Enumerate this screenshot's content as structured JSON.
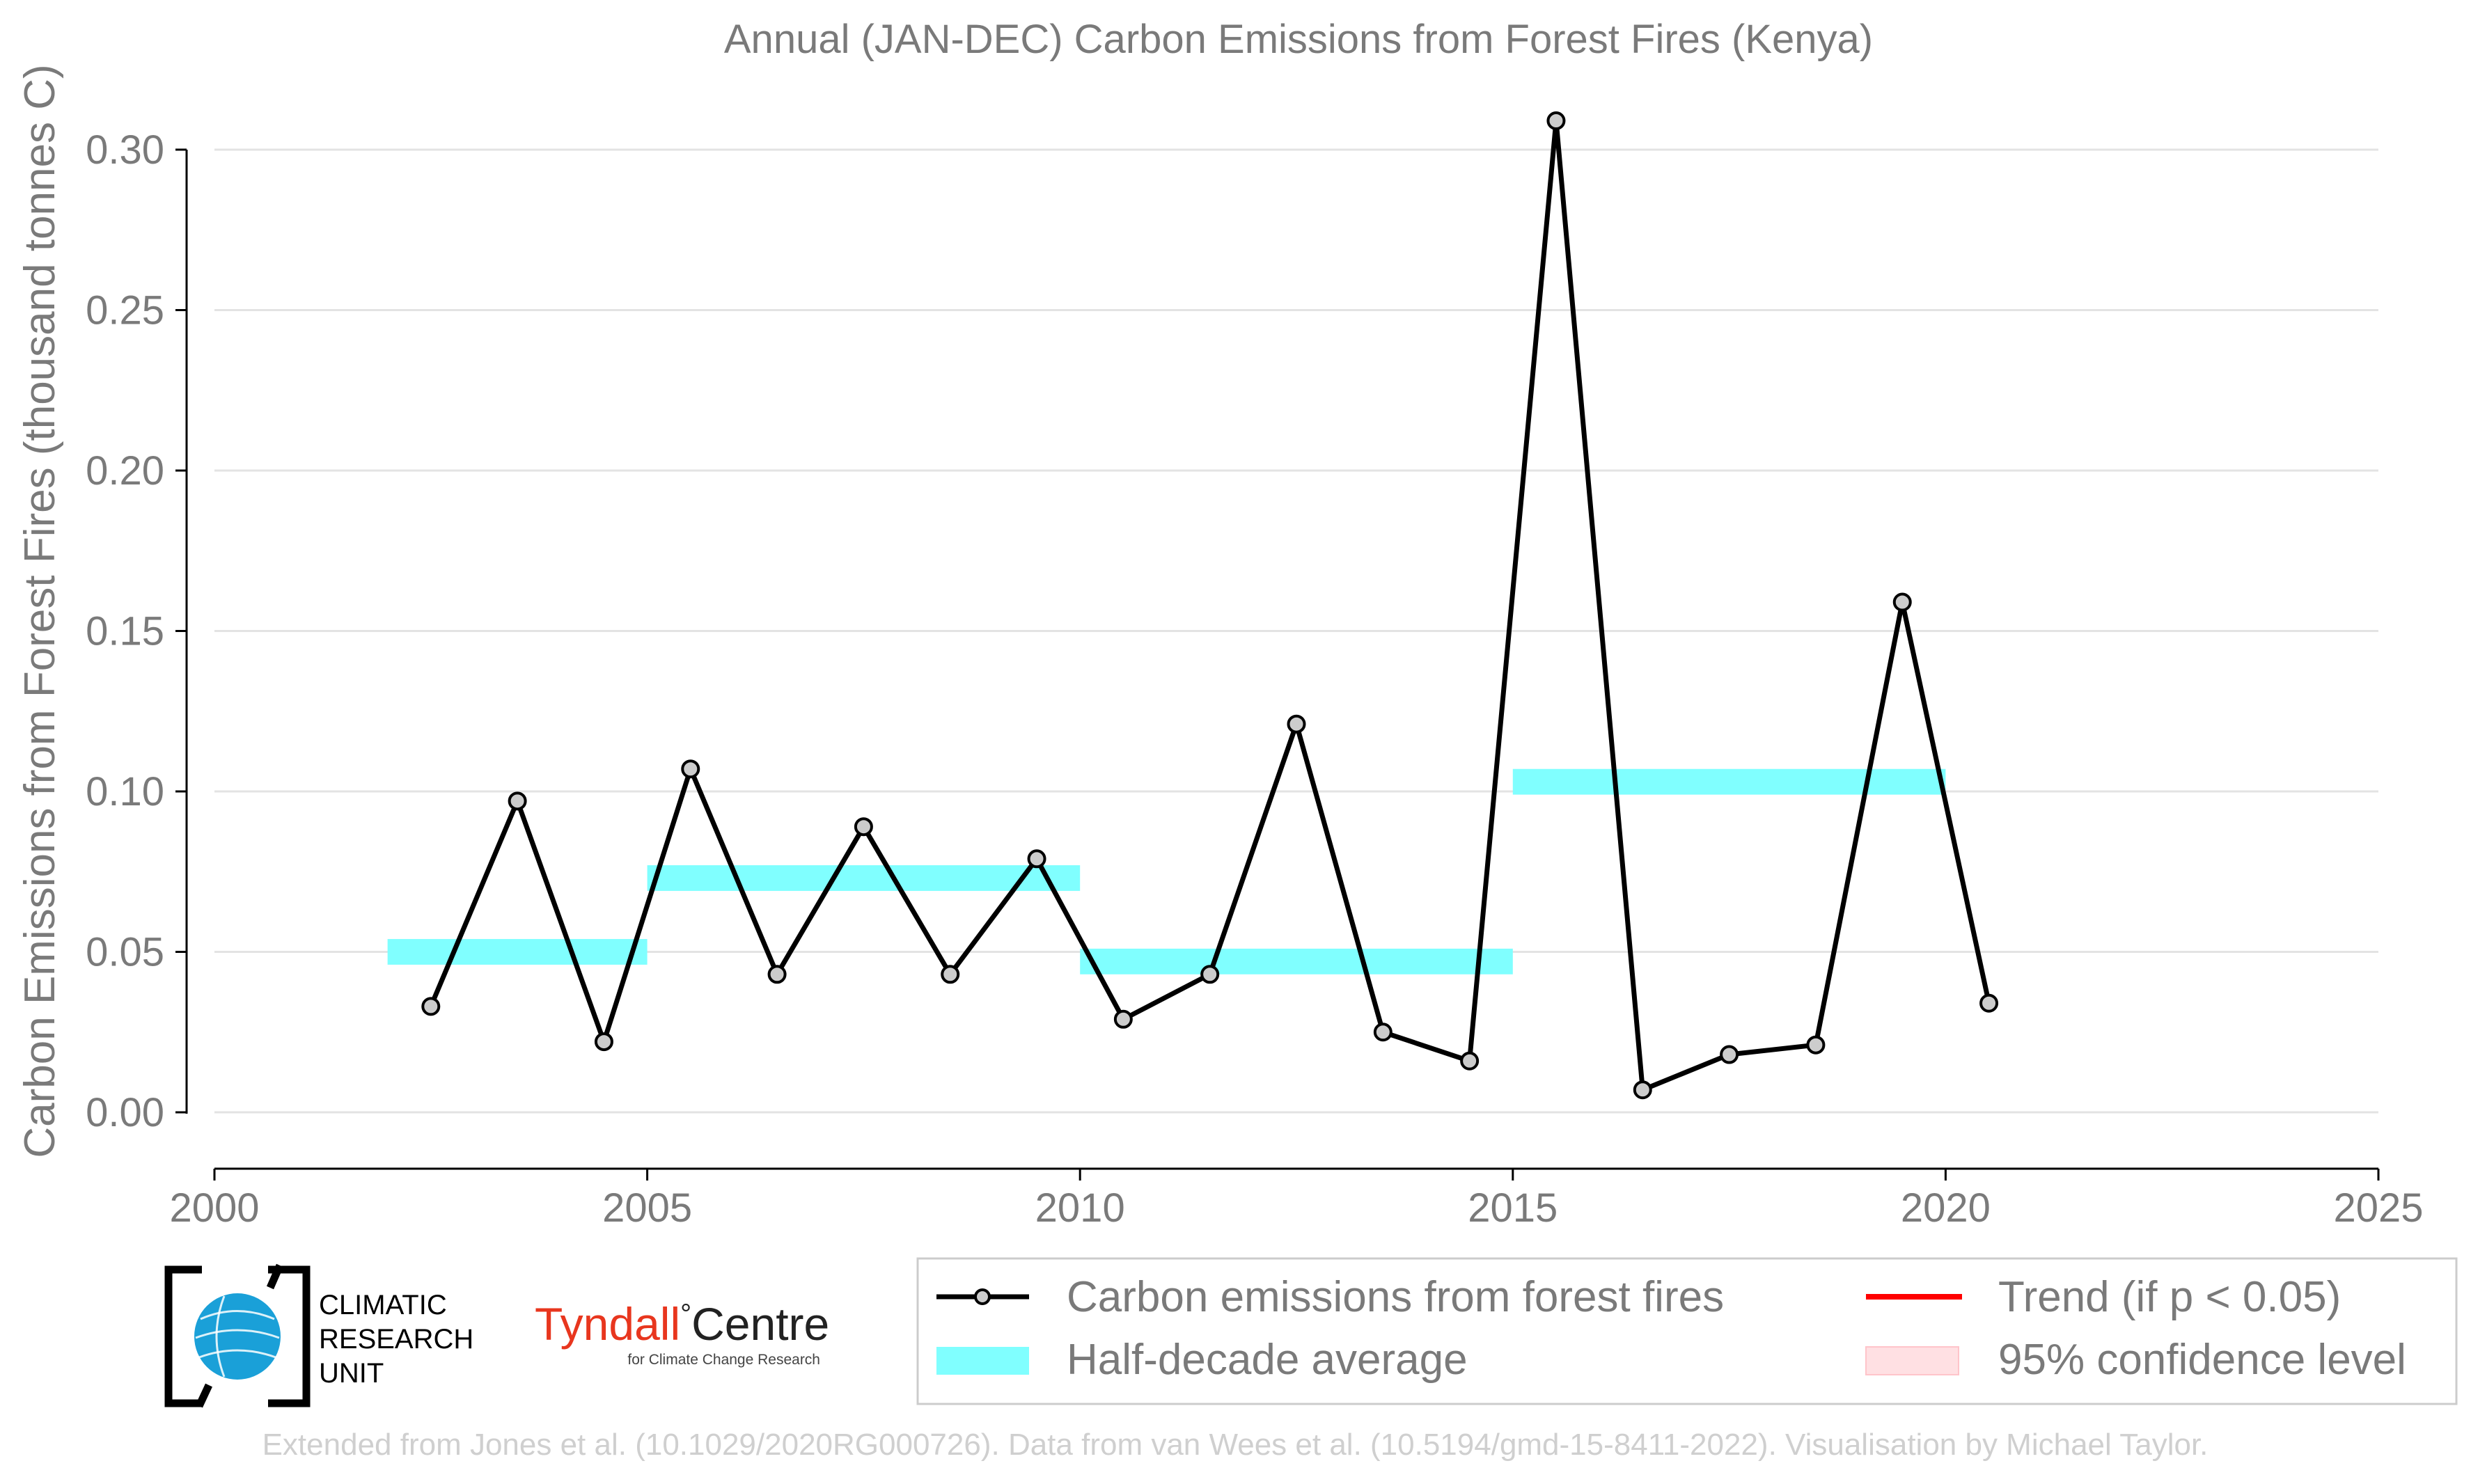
{
  "chart_data": {
    "type": "line",
    "title": "Annual (JAN-DEC) Carbon Emissions from Forest Fires (Kenya)",
    "xlabel": "",
    "ylabel": "Carbon Emissions from Forest Fires (thousand tonnes C)",
    "xlim": [
      2000,
      2025
    ],
    "ylim": [
      -0.013,
      0.322
    ],
    "xticks": [
      2000,
      2005,
      2010,
      2015,
      2020,
      2025
    ],
    "yticks": [
      0.0,
      0.05,
      0.1,
      0.15,
      0.2,
      0.25,
      0.3
    ],
    "grid": "horizontal",
    "legend_placement": "bottom-right",
    "series": [
      {
        "name": "Carbon emissions from forest fires",
        "color": "#000000",
        "marker_color": "#cccccc",
        "x": [
          2002.5,
          2003.5,
          2004.5,
          2005.5,
          2006.5,
          2007.5,
          2008.5,
          2009.5,
          2010.5,
          2011.5,
          2012.5,
          2013.5,
          2014.5,
          2015.5,
          2016.5,
          2017.5,
          2018.5,
          2019.5,
          2020.5
        ],
        "values": [
          0.033,
          0.097,
          0.022,
          0.107,
          0.043,
          0.089,
          0.043,
          0.079,
          0.029,
          0.043,
          0.121,
          0.025,
          0.016,
          0.309,
          0.007,
          0.018,
          0.021,
          0.159,
          0.034
        ]
      }
    ],
    "half_decade_averages": {
      "name": "Half-decade average",
      "color": "#80ffff",
      "band_height": 0.008,
      "segments": [
        {
          "x_start": 2002,
          "x_end": 2005,
          "value": 0.05
        },
        {
          "x_start": 2005,
          "x_end": 2010,
          "value": 0.073
        },
        {
          "x_start": 2010,
          "x_end": 2015,
          "value": 0.047
        },
        {
          "x_start": 2015,
          "x_end": 2020,
          "value": 0.103
        }
      ]
    },
    "legend": [
      {
        "label": "Carbon emissions from forest fires",
        "kind": "line-marker",
        "color": "#000000"
      },
      {
        "label": "Trend (if p < 0.05)",
        "kind": "line",
        "color": "#ff0000"
      },
      {
        "label": "Half-decade average",
        "kind": "band",
        "color": "#80ffff"
      },
      {
        "label": "95% confidence level",
        "kind": "band",
        "color": "#ffe0e3"
      }
    ]
  },
  "logos": {
    "cru": {
      "line1": "CLIMATIC",
      "line2": "RESEARCH",
      "line3": "UNIT"
    },
    "tyndall": {
      "word1": "Tyndall",
      "degree": "°",
      "word2": "Centre",
      "sub": "for Climate Change Research",
      "color_red": "#e8361e"
    }
  },
  "credit": "Extended from Jones et al. (10.1029/2020RG000726). Data from van Wees et al. (10.5194/gmd-15-8411-2022). Visualisation by Michael Taylor."
}
